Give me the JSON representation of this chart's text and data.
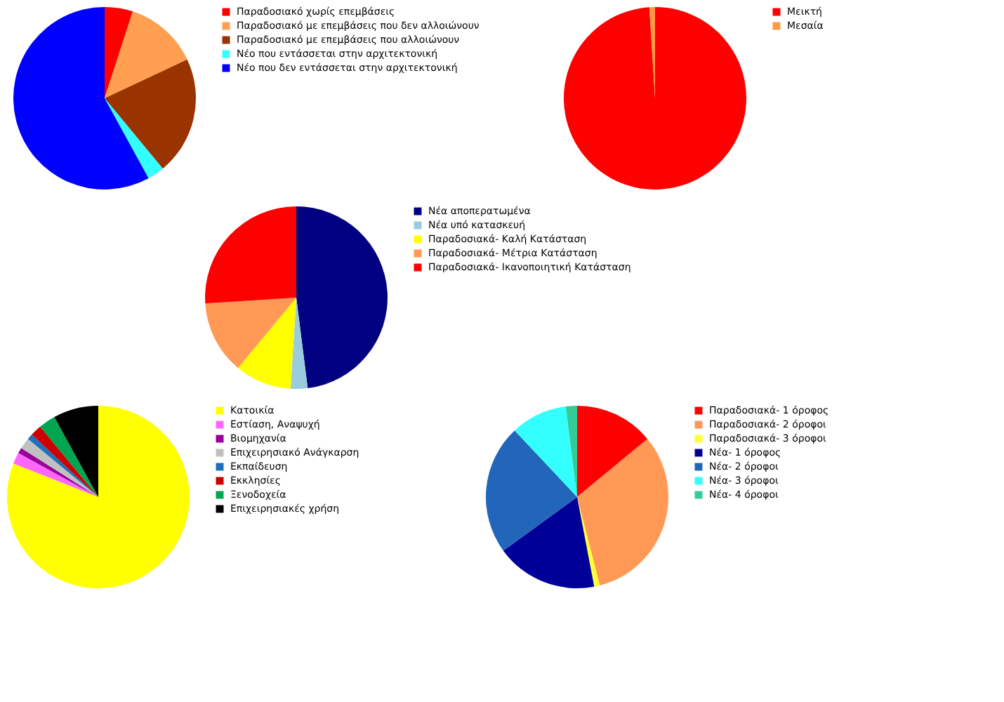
{
  "chart_data": [
    {
      "type": "pie",
      "legend": "right",
      "categories": [
        "Παραδοσιακό χωρίς επεμβάσεις",
        "Παραδοσιακό με επεμβάσεις που δεν αλλοιώνουν",
        "Παραδοσιακό με επεμβάσεις που αλλοιώνουν",
        "Νέο που εντάσσεται στην αρχιτεκτονική",
        "Νέο που δεν εντάσσεται στην αρχιτεκτονική"
      ],
      "values": [
        5,
        13,
        21,
        3,
        58
      ],
      "colors": [
        "#ff0000",
        "#ff9f4f",
        "#993300",
        "#33ffff",
        "#0000ff"
      ]
    },
    {
      "type": "pie",
      "legend": "right",
      "categories": [
        "Μεικτή",
        "Μεσαία"
      ],
      "values": [
        99,
        1
      ],
      "colors": [
        "#ff0000",
        "#ff9944"
      ]
    },
    {
      "type": "pie",
      "legend": "right",
      "categories": [
        "Νέα αποπερατωμένα",
        "Νέα υπό κατασκευή",
        "Παραδοσιακά- Καλή Κατάσταση",
        "Παραδοσιακά- Μέτρια Κατάσταση",
        "Παραδοσιακά- Ικανοποιητική Κατάσταση"
      ],
      "values": [
        48,
        3,
        10,
        13,
        26
      ],
      "colors": [
        "#000080",
        "#99ccdd",
        "#ffff00",
        "#ff9955",
        "#ff0000"
      ]
    },
    {
      "type": "pie",
      "legend": "right",
      "categories": [
        "Κατοικία",
        "Εστίαση, Αναψυχή",
        "Βιομηχανία",
        "Επιχειρησιακό Ανάγκαρση",
        "Εκπαίδευση",
        "Εκκλησίες",
        "Ξενοδοχεία",
        "Επιχειρησιακές χρήση"
      ],
      "values": [
        81,
        2,
        1,
        2,
        1,
        2,
        3,
        8
      ],
      "colors": [
        "#ffff00",
        "#ff66ff",
        "#990099",
        "#c0c0c0",
        "#1f6fbf",
        "#cc0000",
        "#00a550",
        "#000000"
      ]
    },
    {
      "type": "pie",
      "legend": "right",
      "categories": [
        "Παραδοσιακά- 1 όροφος",
        "Παραδοσιακά- 2 όροφοι",
        "Παραδοσιακά- 3 όροφοι",
        "Νέα- 1 όροφος",
        "Νέα- 2 όροφοι",
        "Νέα- 3 όροφοι",
        "Νέα- 4 όροφοι"
      ],
      "values": [
        14,
        32,
        1,
        18,
        23,
        10,
        2
      ],
      "colors": [
        "#ff0000",
        "#ff9955",
        "#ffff33",
        "#000099",
        "#2266bb",
        "#33ffff",
        "#33cc99"
      ]
    }
  ]
}
